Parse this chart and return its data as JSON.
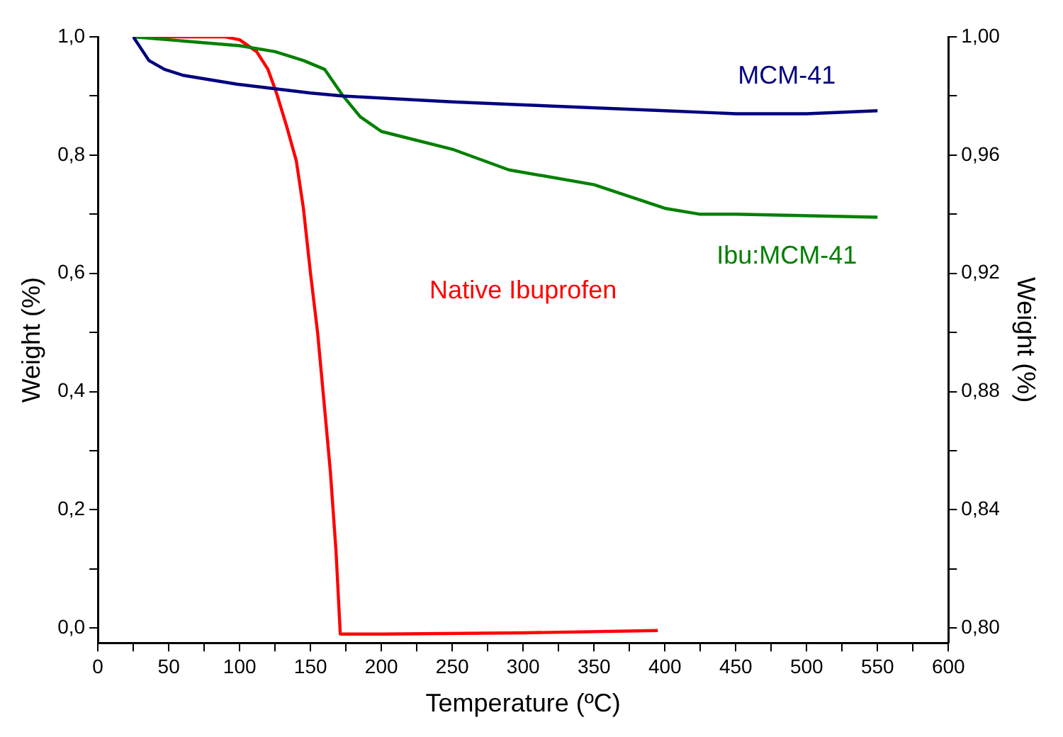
{
  "chart_data": {
    "type": "line",
    "xlabel": "Temperature (ºC)",
    "ylabel": "Weight (%)",
    "y2label": "Weight (%)",
    "xlim": [
      0,
      600
    ],
    "xticks": [
      0,
      {
        "value": 25,
        "label": null
      },
      50,
      {
        "value": 75,
        "label": null
      },
      100,
      {
        "value": 125,
        "label": null
      },
      150,
      {
        "value": 175,
        "label": null
      },
      200,
      {
        "value": 225,
        "label": null
      },
      250,
      {
        "value": 275,
        "label": null
      },
      300,
      {
        "value": 325,
        "label": null
      },
      350,
      {
        "value": 375,
        "label": null
      },
      400,
      {
        "value": 425,
        "label": null
      },
      450,
      {
        "value": 475,
        "label": null
      },
      500,
      {
        "value": 525,
        "label": null
      },
      550,
      {
        "value": 575,
        "label": null
      },
      600
    ],
    "ylim": [
      -0.025,
      1
    ],
    "yticks": [
      {
        "value": 0,
        "label": "0,0"
      },
      {
        "value": 0.1,
        "label": null
      },
      {
        "value": 0.2,
        "label": "0,2"
      },
      {
        "value": 0.3,
        "label": null
      },
      {
        "value": 0.4,
        "label": "0,4"
      },
      {
        "value": 0.5,
        "label": null
      },
      {
        "value": 0.6,
        "label": "0,6"
      },
      {
        "value": 0.7,
        "label": null
      },
      {
        "value": 0.8,
        "label": "0,8"
      },
      {
        "value": 0.9,
        "label": null
      },
      {
        "value": 1,
        "label": "1,0"
      }
    ],
    "y2lim": [
      0.795,
      1
    ],
    "y2ticks": [
      {
        "value": 0.8,
        "label": "0,80"
      },
      {
        "value": 0.82,
        "label": null
      },
      {
        "value": 0.84,
        "label": "0,84"
      },
      {
        "value": 0.86,
        "label": null
      },
      {
        "value": 0.88,
        "label": "0,88"
      },
      {
        "value": 0.9,
        "label": null
      },
      {
        "value": 0.92,
        "label": "0,92"
      },
      {
        "value": 0.94,
        "label": null
      },
      {
        "value": 0.96,
        "label": "0,96"
      },
      {
        "value": 0.98,
        "label": null
      },
      {
        "value": 1,
        "label": "1,00"
      }
    ],
    "grid": false,
    "legend": false,
    "marker": "none",
    "line_style": "solid",
    "series": [
      {
        "name": "MCM-41",
        "color": "#000080",
        "axis": "y2",
        "x": [
          25,
          36,
          47,
          60,
          98,
          150,
          173,
          250,
          300,
          400,
          450,
          500,
          550
        ],
        "values": [
          1.0,
          0.992,
          0.989,
          0.987,
          0.984,
          0.981,
          0.98,
          0.978,
          0.977,
          0.975,
          0.974,
          0.974,
          0.975
        ]
      },
      {
        "name": "Ibu:MCM-41",
        "color": "#008000",
        "axis": "y2",
        "x": [
          25,
          100,
          125,
          145,
          160,
          173,
          185,
          200,
          250,
          290,
          350,
          400,
          425,
          450,
          550
        ],
        "values": [
          1.0,
          0.997,
          0.995,
          0.992,
          0.989,
          0.98,
          0.973,
          0.968,
          0.962,
          0.955,
          0.95,
          0.942,
          0.94,
          0.94,
          0.939
        ]
      },
      {
        "name": "Native Ibuprofen",
        "color": "#ff0000",
        "x": [
          25,
          90,
          100,
          112,
          120,
          126,
          133,
          140,
          145,
          150,
          155,
          160,
          164,
          168,
          171,
          200,
          300,
          395
        ],
        "values": [
          1.0,
          1.0,
          0.995,
          0.975,
          0.945,
          0.905,
          0.85,
          0.79,
          0.71,
          0.6,
          0.5,
          0.37,
          0.265,
          0.13,
          -0.01,
          -0.01,
          -0.008,
          -0.004
        ]
      }
    ]
  }
}
